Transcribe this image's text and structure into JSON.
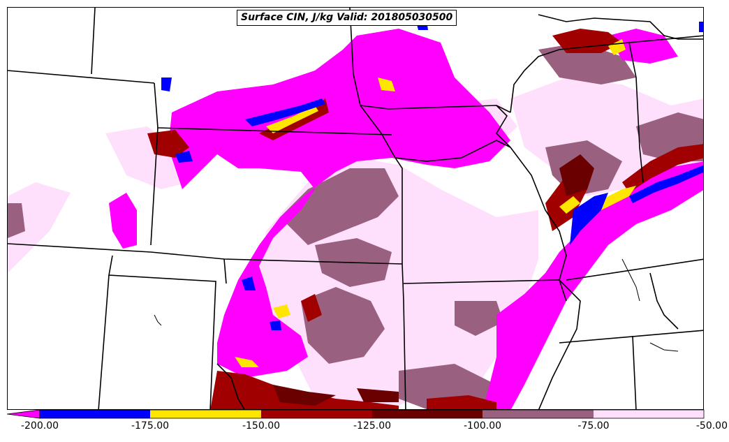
{
  "title": "Surface CIN, J/kg Valid: 201805030500",
  "colors": {
    "magenta": "#ff00ff",
    "blue": "#0000ff",
    "yellow": "#ffe600",
    "dark_red": "#a00000",
    "maroon": "#6a0000",
    "mauve": "#9a6080",
    "light_pink": "#ffe0fc",
    "background": "#ffffff",
    "boundary": "#000000"
  },
  "colorbar": {
    "units": "J/kg",
    "bins": [
      {
        "min": -200,
        "max": -175,
        "color": "#0000ff"
      },
      {
        "min": -175,
        "max": -150,
        "color": "#ffe600"
      },
      {
        "min": -150,
        "max": -125,
        "color": "#a00000"
      },
      {
        "min": -125,
        "max": -100,
        "color": "#6a0000"
      },
      {
        "min": -100,
        "max": -75,
        "color": "#9a6080"
      },
      {
        "min": -75,
        "max": -50,
        "color": "#ffe0fc"
      }
    ],
    "under_color": "#ff00ff",
    "ticks": [
      "-200.00",
      "-175.00",
      "-150.00",
      "-125.00",
      "-100.00",
      "-75.00",
      "-50.00"
    ]
  }
}
